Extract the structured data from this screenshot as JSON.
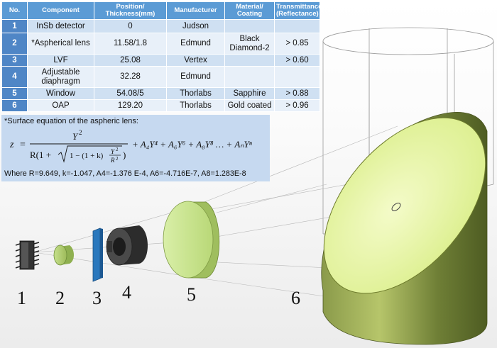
{
  "table": {
    "headers": [
      "No.",
      "Component",
      "Position/ Thickness(mm)",
      "Manufacturer",
      "Material/ Coating",
      "Transmittance (Reflectance)"
    ],
    "rows": [
      {
        "no": "1",
        "component": "InSb detector",
        "position": "0",
        "manufacturer": "Judson",
        "material": "",
        "transmittance": ""
      },
      {
        "no": "2",
        "component": "*Aspherical lens",
        "position": "11.58/1.8",
        "manufacturer": "Edmund",
        "material": "Black Diamond-2",
        "transmittance": "> 0.85"
      },
      {
        "no": "3",
        "component": "LVF",
        "position": "25.08",
        "manufacturer": "Vertex",
        "material": "",
        "transmittance": "> 0.60"
      },
      {
        "no": "4",
        "component": "Adjustable diaphragm",
        "position": "32.28",
        "manufacturer": "Edmund",
        "material": "",
        "transmittance": ""
      },
      {
        "no": "5",
        "component": "Window",
        "position": "54.08/5",
        "manufacturer": "Thorlabs",
        "material": "Sapphire",
        "transmittance": "> 0.88"
      },
      {
        "no": "6",
        "component": "OAP",
        "position": "129.20",
        "manufacturer": "Thorlabs",
        "material": "Gold coated",
        "transmittance": "> 0.96"
      }
    ]
  },
  "equation": {
    "note": "*Surface equation of the aspheric lens:",
    "where": "Where R=9.649, k=-1.047, A4=-1.376 E-4, A6=-4.716E-7, A8=1.283E-8",
    "z": "z",
    "eq": "=",
    "num": "Y",
    "two": "2",
    "r_open": "R(1 +",
    "one_minus": "1 − (1 + k)",
    "r2": "R",
    "close": ")",
    "terms": "+ A₄Y⁴ + A₆Y⁶ + A₈Y⁸ … + AₙYⁿ"
  },
  "labels": {
    "c1": "1",
    "c2": "2",
    "c3": "3",
    "c4": "4",
    "c5": "5",
    "c6": "6"
  },
  "colors": {
    "header": "#5b9bd5",
    "number_cell": "#4f86c6",
    "odd_row": "#cfe0f2",
    "even_row": "#e8f0f9",
    "equation_box": "#c6d9f0",
    "mirror_face": "#e9f7a8",
    "mirror_body": "#7a8a40",
    "window": "#cde89a",
    "lvf": "#2a78bd"
  }
}
